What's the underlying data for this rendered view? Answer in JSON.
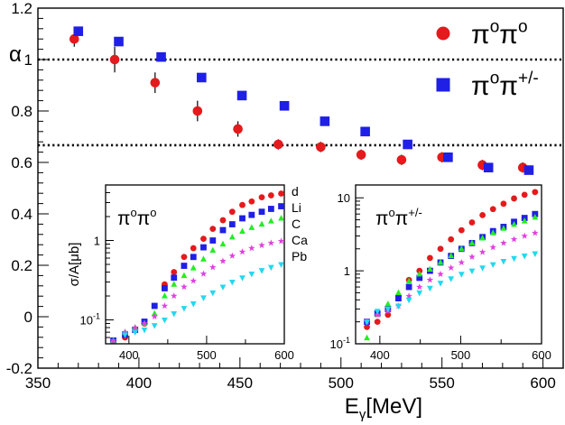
{
  "chart_data": [
    {
      "type": "scatter",
      "title": "",
      "xlabel": "E",
      "xlabel_sub": "γ",
      "xlabel_unit": "[MeV]",
      "ylabel": "α",
      "xlim": [
        350,
        610
      ],
      "ylim": [
        -0.2,
        1.2
      ],
      "x_ticks": [
        350,
        400,
        450,
        500,
        550,
        600
      ],
      "y_ticks": [
        -0.2,
        0,
        0.2,
        0.4,
        0.6,
        0.8,
        1,
        1.2
      ],
      "y_tick_labels": [
        "-0.2",
        "0",
        "0.2",
        "0.4",
        "0.6",
        "0.8",
        "1",
        "1.2"
      ],
      "reference_lines": [
        1.0,
        0.667
      ],
      "legend_position": "top-right",
      "series": [
        {
          "name": "π°π°",
          "label_base": "π",
          "label_sup1": "o",
          "label_sup2": "o",
          "marker": "circle",
          "color": "#e41a1c",
          "x": [
            368,
            388,
            408,
            429,
            449,
            469,
            490,
            510,
            530,
            550,
            570,
            590
          ],
          "y": [
            1.08,
            1.0,
            0.91,
            0.8,
            0.73,
            0.67,
            0.66,
            0.63,
            0.61,
            0.62,
            0.59,
            0.58
          ],
          "err": [
            0.03,
            0.05,
            0.04,
            0.04,
            0.03,
            0.02,
            0.02,
            0.02,
            0.02,
            0.02,
            0.02,
            0.02
          ]
        },
        {
          "name": "π°π+/-",
          "label_base": "π",
          "label_sup1": "o",
          "label_sup2": "+/-",
          "marker": "square",
          "color": "#1f1fe6",
          "x": [
            370,
            390,
            411,
            431,
            451,
            472,
            492,
            512,
            533,
            553,
            573,
            593
          ],
          "y": [
            1.11,
            1.07,
            1.01,
            0.93,
            0.86,
            0.82,
            0.76,
            0.72,
            0.67,
            0.62,
            0.58,
            0.57
          ],
          "err": [
            0.01,
            0.01,
            0.01,
            0.01,
            0.01,
            0.01,
            0.01,
            0.01,
            0.01,
            0.01,
            0.01,
            0.01
          ]
        }
      ]
    },
    {
      "type": "scatter",
      "inset": "left",
      "title": "π°π°",
      "title_base": "π",
      "title_sup1": "o",
      "title_sup2": "o",
      "ylabel": "σ/A[μb]",
      "y_scale": "log",
      "xlim": [
        370,
        600
      ],
      "ylim": [
        0.05,
        5
      ],
      "x_ticks": [
        400,
        500,
        600
      ],
      "minor_x_ticks": [
        450,
        550
      ],
      "y_ticks": [
        0.1,
        1
      ],
      "y_tick_labels": [
        {
          "base": "10",
          "exp": "-1"
        },
        {
          "base": "1",
          "exp": ""
        }
      ],
      "legend_position": "top-right",
      "series": [
        {
          "name": "d",
          "marker": "circle",
          "color": "#e41a1c",
          "x": [
            380,
            395,
            408,
            420,
            433,
            446,
            458,
            471,
            483,
            496,
            508,
            521,
            533,
            546,
            558,
            571,
            583,
            596
          ],
          "y": [
            0.055,
            0.06,
            0.075,
            0.09,
            0.15,
            0.28,
            0.4,
            0.62,
            0.8,
            1.05,
            1.4,
            1.8,
            2.3,
            2.8,
            3.1,
            3.5,
            3.7,
            3.9
          ]
        },
        {
          "name": "Li",
          "marker": "square",
          "color": "#1f1fe6",
          "x": [
            380,
            395,
            408,
            420,
            433,
            446,
            458,
            471,
            483,
            496,
            508,
            521,
            533,
            546,
            558,
            571,
            583,
            596
          ],
          "y": [
            0.055,
            0.065,
            0.075,
            0.095,
            0.15,
            0.25,
            0.34,
            0.48,
            0.62,
            0.82,
            1.0,
            1.35,
            1.6,
            1.9,
            2.1,
            2.3,
            2.5,
            2.7
          ]
        },
        {
          "name": "C",
          "marker": "triangle",
          "color": "#22ee22",
          "x": [
            380,
            395,
            408,
            420,
            433,
            446,
            458,
            471,
            483,
            496,
            508,
            521,
            533,
            546,
            558,
            571,
            583,
            596
          ],
          "y": [
            0.055,
            0.07,
            0.08,
            0.09,
            0.12,
            0.2,
            0.28,
            0.36,
            0.45,
            0.58,
            0.75,
            0.9,
            1.1,
            1.3,
            1.45,
            1.6,
            1.75,
            1.9
          ]
        },
        {
          "name": "Ca",
          "marker": "star",
          "color": "#e040e0",
          "x": [
            380,
            395,
            408,
            420,
            433,
            446,
            458,
            471,
            483,
            496,
            508,
            521,
            533,
            546,
            558,
            571,
            583,
            596
          ],
          "y": [
            0.055,
            0.07,
            0.08,
            0.09,
            0.11,
            0.15,
            0.2,
            0.26,
            0.31,
            0.38,
            0.46,
            0.55,
            0.64,
            0.72,
            0.8,
            0.87,
            0.93,
            0.98
          ]
        },
        {
          "name": "Pb",
          "marker": "triangle-down",
          "color": "#22d8f0",
          "x": [
            380,
            395,
            408,
            420,
            433,
            446,
            458,
            471,
            483,
            496,
            508,
            521,
            533,
            546,
            558,
            571,
            583,
            596
          ],
          "y": [
            0.045,
            0.065,
            0.07,
            0.075,
            0.085,
            0.1,
            0.12,
            0.14,
            0.16,
            0.19,
            0.22,
            0.26,
            0.3,
            0.34,
            0.38,
            0.42,
            0.46,
            0.5
          ]
        }
      ]
    },
    {
      "type": "scatter",
      "inset": "right",
      "title": "π°π+/-",
      "title_base": "π",
      "title_sup1": "o",
      "title_sup2": "+/-",
      "y_scale": "log",
      "xlim": [
        370,
        600
      ],
      "ylim": [
        0.1,
        15
      ],
      "x_ticks": [
        400,
        500,
        600
      ],
      "minor_x_ticks": [
        450,
        550
      ],
      "y_ticks": [
        0.1,
        1,
        10
      ],
      "y_tick_labels": [
        {
          "base": "10",
          "exp": "-1"
        },
        {
          "base": "1",
          "exp": ""
        },
        {
          "base": "10",
          "exp": ""
        }
      ],
      "series": [
        {
          "name": "d",
          "marker": "circle",
          "color": "#e41a1c",
          "x": [
            384,
            397,
            410,
            423,
            436,
            449,
            462,
            475,
            488,
            501,
            514,
            527,
            540,
            553,
            566,
            579,
            592
          ],
          "y": [
            0.17,
            0.2,
            0.25,
            0.45,
            0.75,
            1.0,
            1.5,
            2.0,
            2.7,
            3.6,
            4.6,
            5.8,
            7.0,
            8.3,
            9.8,
            11,
            12
          ]
        },
        {
          "name": "Li",
          "marker": "square",
          "color": "#1f1fe6",
          "x": [
            384,
            397,
            410,
            423,
            436,
            449,
            462,
            475,
            488,
            501,
            514,
            527,
            540,
            553,
            566,
            579,
            592
          ],
          "y": [
            0.2,
            0.26,
            0.3,
            0.42,
            0.6,
            0.8,
            1.0,
            1.3,
            1.6,
            2.0,
            2.4,
            2.9,
            3.5,
            4.0,
            4.7,
            5.3,
            6.0
          ]
        },
        {
          "name": "C",
          "marker": "triangle",
          "color": "#22ee22",
          "x": [
            384,
            397,
            410,
            423,
            436,
            449,
            462,
            475,
            488,
            501,
            514,
            527,
            540,
            553,
            566,
            579,
            592
          ],
          "y": [
            0.12,
            0.25,
            0.35,
            0.5,
            0.72,
            0.9,
            1.05,
            1.3,
            1.6,
            2.0,
            2.4,
            2.8,
            3.3,
            3.8,
            4.3,
            4.8,
            5.4
          ]
        },
        {
          "name": "Ca",
          "marker": "star",
          "color": "#e040e0",
          "x": [
            384,
            397,
            410,
            423,
            436,
            449,
            462,
            475,
            488,
            501,
            514,
            527,
            540,
            553,
            566,
            579,
            592
          ],
          "y": [
            0.2,
            0.25,
            0.28,
            0.33,
            0.45,
            0.6,
            0.75,
            0.9,
            1.1,
            1.3,
            1.55,
            1.8,
            2.1,
            2.4,
            2.7,
            3.0,
            3.3
          ]
        },
        {
          "name": "Pb",
          "marker": "triangle-down",
          "color": "#22d8f0",
          "x": [
            384,
            397,
            410,
            423,
            436,
            449,
            462,
            475,
            488,
            501,
            514,
            527,
            540,
            553,
            566,
            579,
            592
          ],
          "y": [
            0.2,
            0.28,
            0.3,
            0.33,
            0.4,
            0.5,
            0.58,
            0.68,
            0.78,
            0.9,
            1.0,
            1.1,
            1.22,
            1.35,
            1.48,
            1.6,
            1.72
          ]
        }
      ]
    }
  ]
}
